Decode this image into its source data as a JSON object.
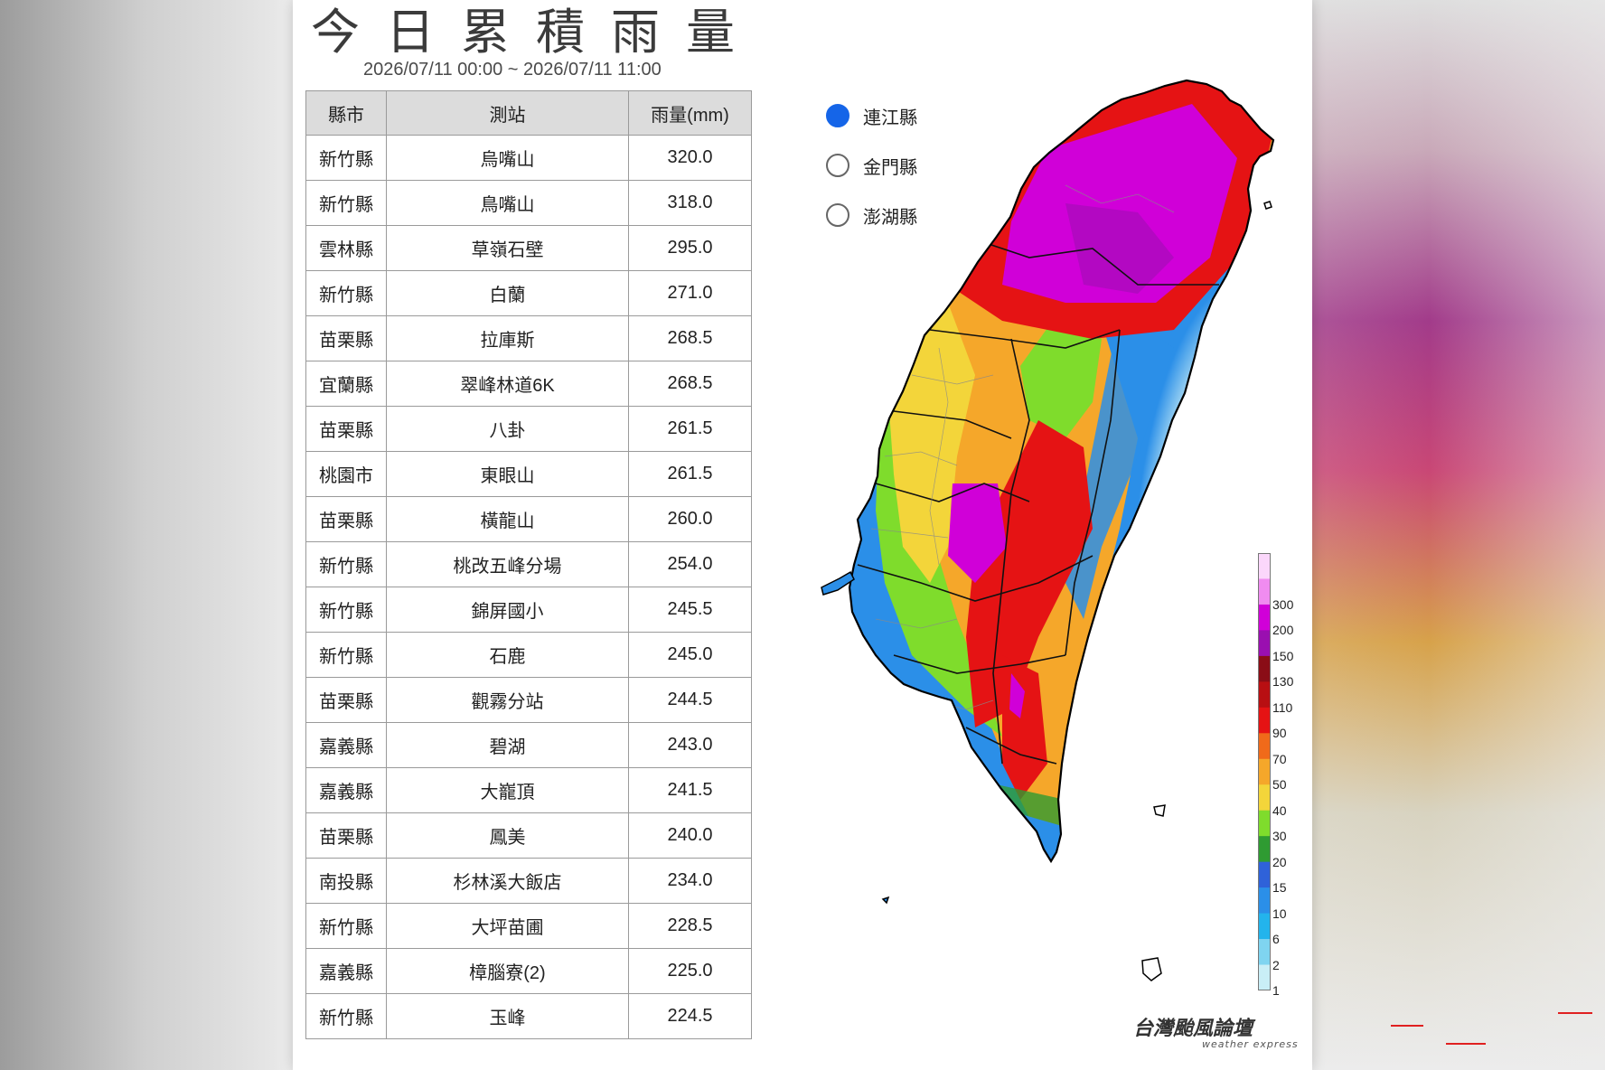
{
  "header": {
    "title": "今日累積雨量",
    "date_range": "2026/07/11 00:00 ~ 2026/07/11 11:00"
  },
  "table": {
    "columns": [
      "縣市",
      "測站",
      "雨量(mm)"
    ],
    "rows": [
      [
        "新竹縣",
        "烏嘴山",
        "320.0"
      ],
      [
        "新竹縣",
        "鳥嘴山",
        "318.0"
      ],
      [
        "雲林縣",
        "草嶺石壁",
        "295.0"
      ],
      [
        "新竹縣",
        "白蘭",
        "271.0"
      ],
      [
        "苗栗縣",
        "拉庫斯",
        "268.5"
      ],
      [
        "宜蘭縣",
        "翠峰林道6K",
        "268.5"
      ],
      [
        "苗栗縣",
        "八卦",
        "261.5"
      ],
      [
        "桃園市",
        "東眼山",
        "261.5"
      ],
      [
        "苗栗縣",
        "橫龍山",
        "260.0"
      ],
      [
        "新竹縣",
        "桃改五峰分場",
        "254.0"
      ],
      [
        "新竹縣",
        "錦屏國小",
        "245.5"
      ],
      [
        "新竹縣",
        "石鹿",
        "245.0"
      ],
      [
        "苗栗縣",
        "觀霧分站",
        "244.5"
      ],
      [
        "嘉義縣",
        "碧湖",
        "243.0"
      ],
      [
        "嘉義縣",
        "大巃頂",
        "241.5"
      ],
      [
        "苗栗縣",
        "鳳美",
        "240.0"
      ],
      [
        "南投縣",
        "杉林溪大飯店",
        "234.0"
      ],
      [
        "新竹縣",
        "大坪苗圃",
        "228.5"
      ],
      [
        "嘉義縣",
        "樟腦寮(2)",
        "225.0"
      ],
      [
        "新竹縣",
        "玉峰",
        "224.5"
      ]
    ]
  },
  "region_selector": {
    "options": [
      {
        "label": "連江縣",
        "selected": true
      },
      {
        "label": "金門縣",
        "selected": false
      },
      {
        "label": "澎湖縣",
        "selected": false
      }
    ],
    "selected_color": "#1565e8"
  },
  "legend": {
    "unit_scale": [
      {
        "label": "",
        "color": "#fbd7fb"
      },
      {
        "label": "300",
        "color": "#f08cf0"
      },
      {
        "label": "200",
        "color": "#d000d8"
      },
      {
        "label": "150",
        "color": "#9a0fb0"
      },
      {
        "label": "130",
        "color": "#8a0d16"
      },
      {
        "label": "110",
        "color": "#b80f12"
      },
      {
        "label": "90",
        "color": "#e51314"
      },
      {
        "label": "70",
        "color": "#f06a1a"
      },
      {
        "label": "50",
        "color": "#f5a72a"
      },
      {
        "label": "40",
        "color": "#f3d53a"
      },
      {
        "label": "30",
        "color": "#7fdc2c"
      },
      {
        "label": "20",
        "color": "#2f9b32"
      },
      {
        "label": "15",
        "color": "#2f62d9"
      },
      {
        "label": "10",
        "color": "#2b8fe8"
      },
      {
        "label": "6",
        "color": "#23b4ec"
      },
      {
        "label": "2",
        "color": "#7fd4f0"
      },
      {
        "label": "1",
        "color": "#c9eef6"
      }
    ]
  },
  "map": {
    "region": "Taiwan",
    "colors": {
      "coast": "#000000",
      "county_border": "#111111",
      "township_border": "#8a8a8a",
      "dry": "#ffffff",
      "light": "#c9eef6",
      "blue": "#2b8fe8",
      "green": "#7fdc2c",
      "yellow": "#f3d53a",
      "orange": "#f5a72a",
      "red": "#e51314",
      "magenta": "#d000d8"
    }
  },
  "branding": {
    "name": "台灣颱風論壇",
    "subtitle": "weather express"
  }
}
